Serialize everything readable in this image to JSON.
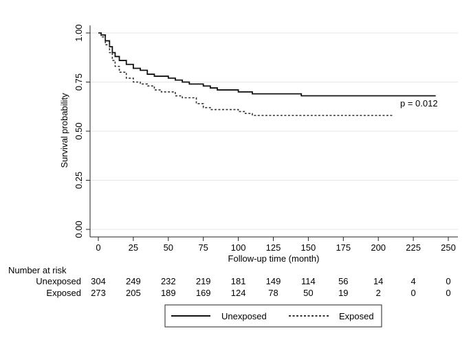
{
  "chart_data": {
    "type": "line",
    "subtype": "kaplan-meier",
    "title": "",
    "xlabel": "Follow-up time (month)",
    "ylabel": "Survival probability",
    "xlim": [
      0,
      250
    ],
    "ylim": [
      0,
      1
    ],
    "x_ticks": [
      0,
      25,
      50,
      75,
      100,
      125,
      150,
      175,
      200,
      225,
      250
    ],
    "y_ticks": [
      0,
      0.25,
      0.5,
      0.75,
      1.0
    ],
    "y_tick_labels": [
      "0.00",
      "0.25",
      "0.50",
      "0.75",
      "1.00"
    ],
    "grid": "horizontal",
    "annotation": "p = 0.012",
    "series": [
      {
        "name": "Unexposed",
        "style": "solid",
        "color": "#111111",
        "x": [
          0,
          2,
          5,
          8,
          10,
          12,
          15,
          20,
          25,
          30,
          35,
          40,
          50,
          55,
          60,
          65,
          75,
          80,
          85,
          90,
          100,
          110,
          130,
          145,
          200,
          241
        ],
        "y": [
          1.0,
          0.99,
          0.96,
          0.93,
          0.9,
          0.88,
          0.86,
          0.84,
          0.82,
          0.81,
          0.79,
          0.78,
          0.77,
          0.76,
          0.75,
          0.74,
          0.73,
          0.72,
          0.71,
          0.71,
          0.7,
          0.69,
          0.69,
          0.68,
          0.68,
          0.68
        ]
      },
      {
        "name": "Exposed",
        "style": "dashed",
        "color": "#333333",
        "x": [
          0,
          2,
          5,
          8,
          10,
          12,
          15,
          20,
          25,
          30,
          35,
          40,
          45,
          50,
          55,
          60,
          70,
          75,
          80,
          90,
          100,
          105,
          110,
          210
        ],
        "y": [
          1.0,
          0.98,
          0.94,
          0.9,
          0.86,
          0.83,
          0.8,
          0.77,
          0.75,
          0.74,
          0.73,
          0.71,
          0.7,
          0.7,
          0.68,
          0.67,
          0.64,
          0.62,
          0.61,
          0.61,
          0.6,
          0.59,
          0.58,
          0.58
        ]
      }
    ],
    "risk_table": {
      "title": "Number at risk",
      "rows": [
        {
          "label": "Unexposed",
          "values": [
            "304",
            "249",
            "232",
            "219",
            "181",
            "149",
            "114",
            "56",
            "14",
            "4",
            "0"
          ]
        },
        {
          "label": "Exposed",
          "values": [
            "273",
            "205",
            "189",
            "169",
            "124",
            "78",
            "50",
            "19",
            "2",
            "0",
            "0"
          ]
        }
      ]
    },
    "legend": {
      "position": "bottom-center",
      "entries": [
        {
          "label": "Unexposed",
          "style": "solid"
        },
        {
          "label": "Exposed",
          "style": "dashed"
        }
      ]
    }
  }
}
